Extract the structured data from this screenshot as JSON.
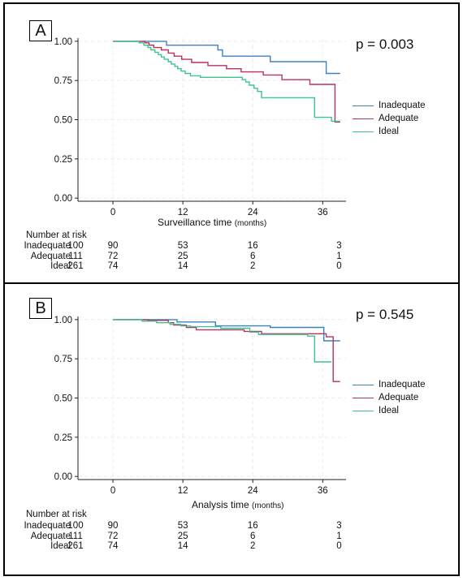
{
  "chart_data": [
    {
      "panel": "A",
      "type": "line",
      "step": true,
      "p_value": "p = 0.003",
      "xlabel": "Surveillance time",
      "xlabel_unit": "(months)",
      "xlim": [
        -6,
        40
      ],
      "ylim": [
        -0.02,
        1.02
      ],
      "xticks": [
        "0",
        "12",
        "24",
        "36"
      ],
      "xtick_values": [
        0,
        12,
        24,
        36
      ],
      "yticks": [
        "0.00",
        "0.25",
        "0.50",
        "0.75",
        "1.00"
      ],
      "ytick_values": [
        0,
        0.25,
        0.5,
        0.75,
        1.0
      ],
      "grid": true,
      "legend_position": "right",
      "series": [
        {
          "name": "Inadequate",
          "color": "#3b82c4",
          "points": [
            [
              0,
              1.0
            ],
            [
              9.2,
              1.0
            ],
            [
              9.2,
              0.975
            ],
            [
              18,
              0.975
            ],
            [
              18,
              0.945
            ],
            [
              18.8,
              0.945
            ],
            [
              18.8,
              0.905
            ],
            [
              27,
              0.905
            ],
            [
              27,
              0.87
            ],
            [
              36.6,
              0.87
            ],
            [
              36.6,
              0.795
            ],
            [
              39,
              0.795
            ]
          ]
        },
        {
          "name": "Adequate",
          "color": "#b83263",
          "points": [
            [
              0,
              1.0
            ],
            [
              5.5,
              1.0
            ],
            [
              5.5,
              0.99
            ],
            [
              6.2,
              0.99
            ],
            [
              6.2,
              0.975
            ],
            [
              7,
              0.975
            ],
            [
              7,
              0.96
            ],
            [
              8.3,
              0.96
            ],
            [
              8.3,
              0.945
            ],
            [
              9.5,
              0.945
            ],
            [
              9.5,
              0.925
            ],
            [
              10.5,
              0.925
            ],
            [
              10.5,
              0.905
            ],
            [
              11.8,
              0.905
            ],
            [
              11.8,
              0.885
            ],
            [
              13.5,
              0.885
            ],
            [
              13.5,
              0.865
            ],
            [
              16.3,
              0.865
            ],
            [
              16.3,
              0.845
            ],
            [
              19.5,
              0.845
            ],
            [
              19.5,
              0.825
            ],
            [
              22,
              0.825
            ],
            [
              22,
              0.805
            ],
            [
              25.8,
              0.805
            ],
            [
              25.8,
              0.785
            ],
            [
              29,
              0.785
            ],
            [
              29,
              0.755
            ],
            [
              33.8,
              0.755
            ],
            [
              33.8,
              0.725
            ],
            [
              38.1,
              0.725
            ],
            [
              38.1,
              0.485
            ],
            [
              39,
              0.485
            ]
          ]
        },
        {
          "name": "Ideal",
          "color": "#3ec48e",
          "points": [
            [
              0,
              1.0
            ],
            [
              4.5,
              1.0
            ],
            [
              4.5,
              0.99
            ],
            [
              5.3,
              0.99
            ],
            [
              5.3,
              0.975
            ],
            [
              6,
              0.975
            ],
            [
              6,
              0.96
            ],
            [
              6.5,
              0.96
            ],
            [
              6.5,
              0.945
            ],
            [
              7.2,
              0.945
            ],
            [
              7.2,
              0.93
            ],
            [
              7.8,
              0.93
            ],
            [
              7.8,
              0.915
            ],
            [
              8.3,
              0.915
            ],
            [
              8.3,
              0.9
            ],
            [
              8.8,
              0.9
            ],
            [
              8.8,
              0.885
            ],
            [
              9.5,
              0.885
            ],
            [
              9.5,
              0.87
            ],
            [
              10,
              0.87
            ],
            [
              10,
              0.855
            ],
            [
              10.6,
              0.855
            ],
            [
              10.6,
              0.84
            ],
            [
              11.1,
              0.84
            ],
            [
              11.1,
              0.825
            ],
            [
              11.7,
              0.825
            ],
            [
              11.7,
              0.81
            ],
            [
              12.4,
              0.81
            ],
            [
              12.4,
              0.795
            ],
            [
              13.3,
              0.795
            ],
            [
              13.3,
              0.78
            ],
            [
              15,
              0.78
            ],
            [
              15,
              0.77
            ],
            [
              22.2,
              0.77
            ],
            [
              22.2,
              0.755
            ],
            [
              22.8,
              0.755
            ],
            [
              22.8,
              0.74
            ],
            [
              23.4,
              0.74
            ],
            [
              23.4,
              0.72
            ],
            [
              24.2,
              0.72
            ],
            [
              24.2,
              0.7
            ],
            [
              24.8,
              0.7
            ],
            [
              24.8,
              0.68
            ],
            [
              25.5,
              0.68
            ],
            [
              25.5,
              0.64
            ],
            [
              34.6,
              0.64
            ],
            [
              34.6,
              0.515
            ],
            [
              37.5,
              0.515
            ],
            [
              37.5,
              0.49
            ],
            [
              39,
              0.49
            ]
          ]
        }
      ],
      "risk_table": {
        "title": "Number at risk",
        "rows": [
          {
            "name": "Inadequate",
            "n0": "100",
            "values": [
              "90",
              "53",
              "16",
              "3"
            ]
          },
          {
            "name": "Adequate",
            "n0": "111",
            "values": [
              "72",
              "25",
              "6",
              "1"
            ]
          },
          {
            "name": "Ideal",
            "n0": "261",
            "values": [
              "74",
              "14",
              "2",
              "0"
            ]
          }
        ]
      }
    },
    {
      "panel": "B",
      "type": "line",
      "step": true,
      "p_value": "p = 0.545",
      "xlabel": "Analysis time",
      "xlabel_unit": "(months)",
      "xlim": [
        -6,
        40
      ],
      "ylim": [
        -0.02,
        1.02
      ],
      "xticks": [
        "0",
        "12",
        "24",
        "36"
      ],
      "xtick_values": [
        0,
        12,
        24,
        36
      ],
      "yticks": [
        "0.00",
        "0.25",
        "0.50",
        "0.75",
        "1.00"
      ],
      "ytick_values": [
        0,
        0.25,
        0.5,
        0.75,
        1.0
      ],
      "grid": true,
      "legend_position": "right",
      "series": [
        {
          "name": "Inadequate",
          "color": "#3b82c4",
          "points": [
            [
              0,
              1.0
            ],
            [
              11,
              1.0
            ],
            [
              11,
              0.985
            ],
            [
              17.6,
              0.985
            ],
            [
              17.6,
              0.96
            ],
            [
              27,
              0.96
            ],
            [
              27,
              0.95
            ],
            [
              36.2,
              0.95
            ],
            [
              36.2,
              0.865
            ],
            [
              39,
              0.865
            ]
          ]
        },
        {
          "name": "Adequate",
          "color": "#b83263",
          "points": [
            [
              0,
              1.0
            ],
            [
              6,
              1.0
            ],
            [
              6,
              0.995
            ],
            [
              9.5,
              0.995
            ],
            [
              9.5,
              0.98
            ],
            [
              10.4,
              0.98
            ],
            [
              10.4,
              0.965
            ],
            [
              12.6,
              0.965
            ],
            [
              12.6,
              0.95
            ],
            [
              14.3,
              0.95
            ],
            [
              14.3,
              0.935
            ],
            [
              22.5,
              0.935
            ],
            [
              22.5,
              0.925
            ],
            [
              25.5,
              0.925
            ],
            [
              25.5,
              0.91
            ],
            [
              36.6,
              0.91
            ],
            [
              36.6,
              0.89
            ],
            [
              37.8,
              0.89
            ],
            [
              37.8,
              0.605
            ],
            [
              39,
              0.605
            ]
          ]
        },
        {
          "name": "Ideal",
          "color": "#3ec48e",
          "points": [
            [
              0,
              1.0
            ],
            [
              5,
              1.0
            ],
            [
              5,
              0.99
            ],
            [
              7.5,
              0.99
            ],
            [
              7.5,
              0.98
            ],
            [
              9.8,
              0.98
            ],
            [
              9.8,
              0.97
            ],
            [
              11.6,
              0.97
            ],
            [
              11.6,
              0.96
            ],
            [
              13.3,
              0.96
            ],
            [
              13.3,
              0.955
            ],
            [
              18.5,
              0.955
            ],
            [
              18.5,
              0.945
            ],
            [
              23.5,
              0.945
            ],
            [
              23.5,
              0.92
            ],
            [
              25,
              0.92
            ],
            [
              25,
              0.905
            ],
            [
              33.4,
              0.905
            ],
            [
              33.4,
              0.895
            ],
            [
              34.6,
              0.895
            ],
            [
              34.6,
              0.73
            ],
            [
              37.5,
              0.73
            ]
          ]
        }
      ],
      "risk_table": {
        "title": "Number at risk",
        "rows": [
          {
            "name": "Inadequate",
            "n0": "100",
            "values": [
              "90",
              "53",
              "16",
              "3"
            ]
          },
          {
            "name": "Adequate",
            "n0": "111",
            "values": [
              "72",
              "25",
              "6",
              "1"
            ]
          },
          {
            "name": "Ideal",
            "n0": "261",
            "values": [
              "74",
              "14",
              "2",
              "0"
            ]
          }
        ]
      }
    }
  ]
}
